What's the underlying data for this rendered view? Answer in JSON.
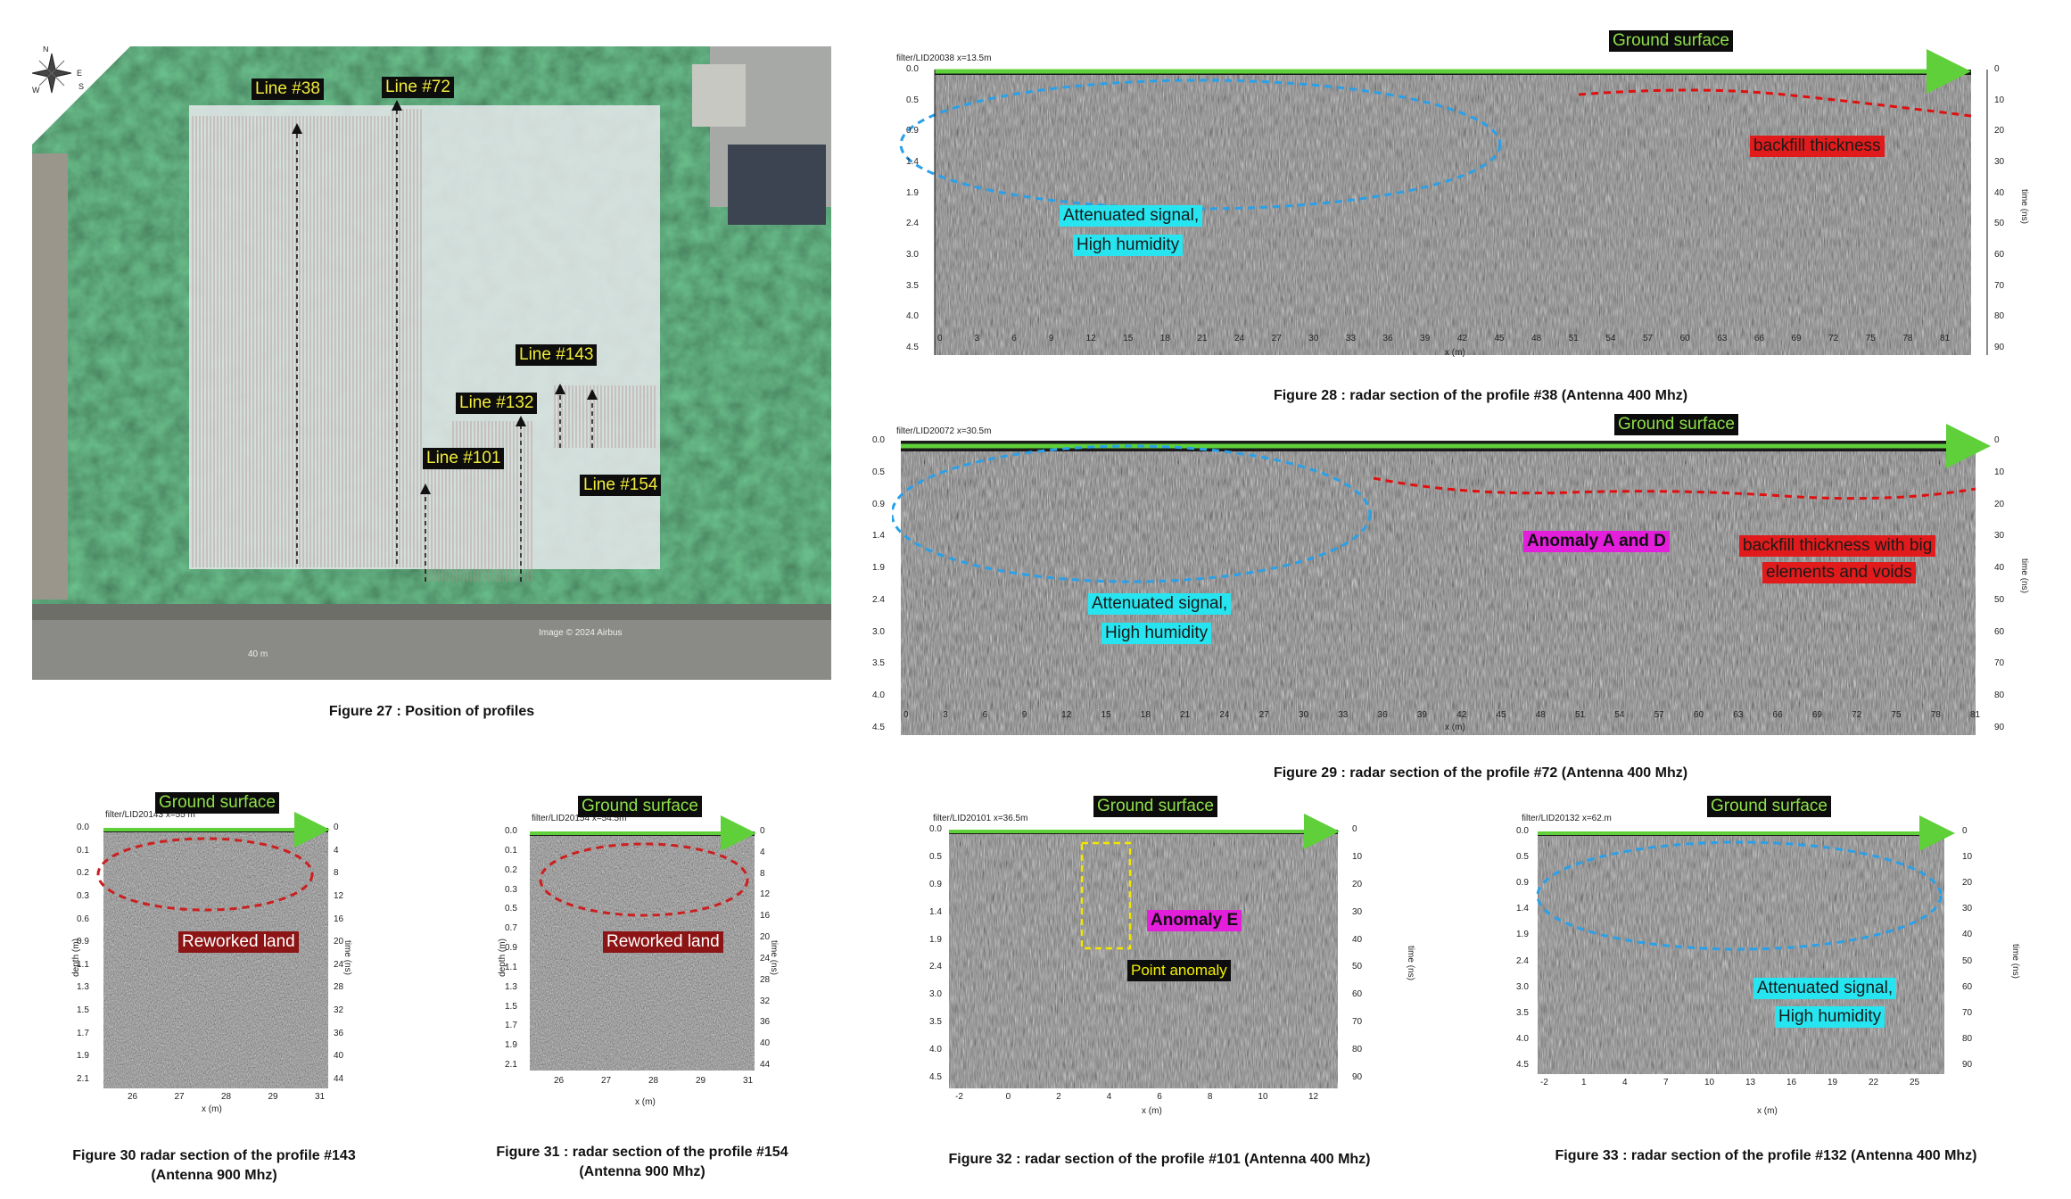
{
  "fig27": {
    "caption": "Figure 27 : Position of profiles",
    "lines": [
      "Line #38",
      "Line #72",
      "Line #143",
      "Line #132",
      "Line #101",
      "Line #154"
    ],
    "imagery": "Image © 2024 Airbus",
    "scale": "40 m",
    "compass": [
      "N",
      "E",
      "S",
      "W"
    ]
  },
  "fig28": {
    "caption": "Figure 28 : radar section of the profile #38 (Antenna 400 Mhz)",
    "header": "filter/LID20038   x=13.5m",
    "ground": "Ground surface",
    "l1": "Attenuated signal,",
    "l2": "High humidity",
    "backfill": "backfill thickness",
    "xlabel": "x (m)",
    "ylabel": "time (ns)",
    "depth": [
      "0.0",
      "0.5",
      "0.9",
      "1.4",
      "1.9",
      "2.4",
      "3.0",
      "3.5",
      "4.0",
      "4.5"
    ],
    "time": [
      "0",
      "10",
      "20",
      "30",
      "40",
      "50",
      "60",
      "70",
      "80",
      "90"
    ],
    "xticks": [
      "0",
      "3",
      "6",
      "9",
      "12",
      "15",
      "18",
      "21",
      "24",
      "27",
      "30",
      "33",
      "36",
      "39",
      "42",
      "45",
      "48",
      "51",
      "54",
      "57",
      "60",
      "63",
      "66",
      "69",
      "72",
      "75",
      "78",
      "81"
    ]
  },
  "fig29": {
    "caption": "Figure 29 : radar section of the profile #72 (Antenna 400 Mhz)",
    "header": "filter/LID20072   x=30.5m",
    "ground": "Ground surface",
    "l1": "Attenuated signal,",
    "l2": "High humidity",
    "anomaly": "Anomaly A and D",
    "bf1": "backfill thickness with big",
    "bf2": "elements and voids",
    "xlabel": "x (m)",
    "ylabel": "time (ns)",
    "depth": [
      "0.0",
      "0.5",
      "0.9",
      "1.4",
      "1.9",
      "2.4",
      "3.0",
      "3.5",
      "4.0",
      "4.5"
    ],
    "time": [
      "0",
      "10",
      "20",
      "30",
      "40",
      "50",
      "60",
      "70",
      "80",
      "90"
    ],
    "xticks": [
      "0",
      "3",
      "6",
      "9",
      "12",
      "15",
      "18",
      "21",
      "24",
      "27",
      "30",
      "33",
      "36",
      "39",
      "42",
      "45",
      "48",
      "51",
      "54",
      "57",
      "60",
      "63",
      "66",
      "69",
      "72",
      "75",
      "78",
      "81"
    ]
  },
  "fig30": {
    "caption1": "Figure 30 radar section of the profile #143",
    "caption2": "(Antenna 900 Mhz)",
    "header": "filter/LID20143   x=55 m",
    "ground": "Ground surface",
    "label": "Reworked land",
    "xlabel": "x (m)",
    "ylabel": "depth (m)",
    "tlabel": "time (ns)",
    "depth": [
      "0.0",
      "0.1",
      "0.2",
      "0.3",
      "0.6",
      "0.9",
      "1.1",
      "1.3",
      "1.5",
      "1.7",
      "1.9",
      "2.1"
    ],
    "time": [
      "0",
      "4",
      "8",
      "12",
      "16",
      "20",
      "24",
      "28",
      "32",
      "36",
      "40",
      "44"
    ],
    "xticks": [
      "26",
      "27",
      "28",
      "29",
      "31"
    ]
  },
  "fig31": {
    "caption1": "Figure 31 : radar section of the profile #154",
    "caption2": "(Antenna 900 Mhz)",
    "header": "filter/LID20154   x=54.5m",
    "ground": "Ground surface",
    "label": "Reworked land",
    "xlabel": "x (m)",
    "ylabel": "depth (m)",
    "tlabel": "time (ns)",
    "depth": [
      "0.0",
      "0.1",
      "0.2",
      "0.3",
      "0.5",
      "0.7",
      "0.9",
      "1.1",
      "1.3",
      "1.5",
      "1.7",
      "1.9",
      "2.1"
    ],
    "time": [
      "0",
      "4",
      "8",
      "12",
      "16",
      "20",
      "24",
      "28",
      "32",
      "36",
      "40",
      "44"
    ],
    "xticks": [
      "26",
      "27",
      "28",
      "29",
      "31"
    ]
  },
  "fig32": {
    "caption": "Figure 32 : radar section of the profile #101 (Antenna 400 Mhz)",
    "header": "filter/LID20101   x=36.5m",
    "ground": "Ground surface",
    "anomaly": "Anomaly E",
    "point": "Point anomaly",
    "xlabel": "x (m)",
    "ylabel": "time (ns)",
    "depth": [
      "0.0",
      "0.5",
      "0.9",
      "1.4",
      "1.9",
      "2.4",
      "3.0",
      "3.5",
      "4.0",
      "4.5"
    ],
    "time": [
      "0",
      "10",
      "20",
      "30",
      "40",
      "50",
      "60",
      "70",
      "80",
      "90"
    ],
    "xticks": [
      "-2",
      "0",
      "2",
      "4",
      "6",
      "8",
      "10",
      "12"
    ]
  },
  "fig33": {
    "caption": "Figure 33 : radar section of the profile #132 (Antenna 400 Mhz)",
    "header": "filter/LID20132   x=62.m",
    "ground": "Ground surface",
    "l1": "Attenuated signal,",
    "l2": "High humidity",
    "xlabel": "x (m)",
    "ylabel": "time (ns)",
    "depth": [
      "0.0",
      "0.5",
      "0.9",
      "1.4",
      "1.9",
      "2.4",
      "3.0",
      "3.5",
      "4.0",
      "4.5"
    ],
    "time": [
      "0",
      "10",
      "20",
      "30",
      "40",
      "50",
      "60",
      "70",
      "80",
      "90"
    ],
    "xticks": [
      "-2",
      "1",
      "4",
      "7",
      "10",
      "13",
      "16",
      "19",
      "22",
      "25"
    ]
  },
  "colors": {
    "ground_arrow": "#5fcf3a",
    "blue_ellipse": "#2aa0e8",
    "red_dash": "#e01010",
    "yellow_box": "#f2e600"
  }
}
